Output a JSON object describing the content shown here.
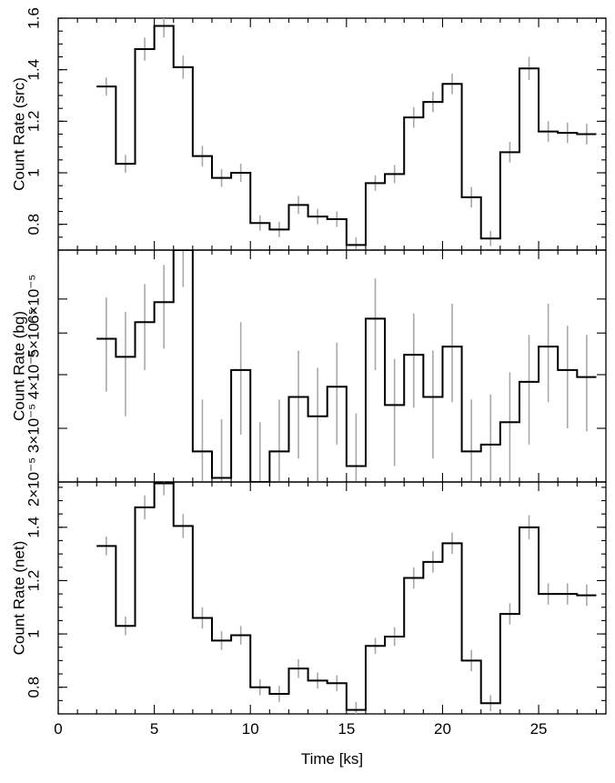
{
  "chart_data": {
    "type": "line",
    "drawstyle": "steps",
    "xlabel": "Time [ks]",
    "xlim": [
      0,
      28.5
    ],
    "xticks": [
      0,
      5,
      10,
      15,
      20,
      25
    ],
    "xticklabels": [
      "0",
      "5",
      "10",
      "15",
      "20",
      "25"
    ],
    "bin_width_ks": 1,
    "x": [
      2.5,
      3.5,
      4.5,
      5.5,
      6.5,
      7.5,
      8.5,
      9.5,
      10.5,
      11.5,
      12.5,
      13.5,
      14.5,
      15.5,
      16.5,
      17.5,
      18.5,
      19.5,
      20.5,
      21.5,
      22.5,
      23.5,
      24.5,
      25.5,
      26.5,
      27.5
    ],
    "panels": [
      {
        "name": "src",
        "ylabel": "Count Rate (src)",
        "ylim": [
          0.7,
          1.6
        ],
        "yticks": [
          0.8,
          1.0,
          1.2,
          1.4,
          1.6
        ],
        "yticklabels": [
          "0.8",
          "1",
          "1.2",
          "1.4",
          "1.6"
        ],
        "values": [
          1.335,
          1.035,
          1.48,
          1.57,
          1.41,
          1.065,
          0.98,
          1.0,
          0.805,
          0.78,
          0.875,
          0.83,
          0.82,
          0.72,
          0.96,
          0.995,
          1.215,
          1.275,
          1.345,
          0.905,
          0.745,
          1.08,
          1.405,
          1.16,
          1.155,
          1.15
        ],
        "errors": [
          0.035,
          0.035,
          0.045,
          0.045,
          0.045,
          0.04,
          0.035,
          0.035,
          0.03,
          0.03,
          0.035,
          0.03,
          0.03,
          0.03,
          0.03,
          0.035,
          0.04,
          0.04,
          0.04,
          0.04,
          0.03,
          0.04,
          0.045,
          0.04,
          0.04,
          0.04
        ]
      },
      {
        "name": "bg",
        "ylabel": "Count Rate (bg)",
        "scale": "log",
        "ylim": [
          2.25e-05,
          7.8e-05
        ],
        "yticks": [
          2e-05,
          3e-05,
          4e-05,
          5e-05,
          6e-05
        ],
        "yticklabels": [
          "2×10⁻⁵",
          "3×10⁻⁵",
          "4×10⁻⁵",
          "5×10⁻⁵",
          "6×10⁻⁵"
        ],
        "values": [
          4.85e-05,
          4.4e-05,
          5.3e-05,
          5.9e-05,
          7.8e-05,
          2.65e-05,
          2.3e-05,
          4.1e-05,
          2.25e-05,
          2.65e-05,
          3.55e-05,
          3.2e-05,
          3.75e-05,
          2.45e-05,
          5.4e-05,
          3.4e-05,
          4.45e-05,
          3.55e-05,
          4.65e-05,
          2.65e-05,
          2.75e-05,
          3.1e-05,
          3.85e-05,
          4.65e-05,
          4.1e-05,
          3.95e-05
        ],
        "errors": [
          1.2e-05,
          1.2e-05,
          1.2e-05,
          1.3e-05,
          1.4e-05,
          8.5e-06,
          8.5e-06,
          1.2e-05,
          8.5e-06,
          8.5e-06,
          1e-05,
          9.5e-06,
          1e-05,
          8e-06,
          1.3e-05,
          9.5e-06,
          1.1e-05,
          1e-05,
          1.2e-05,
          8.5e-06,
          8.5e-06,
          9.5e-06,
          1.1e-05,
          1.2e-05,
          1.1e-05,
          1e-05
        ]
      },
      {
        "name": "net",
        "ylabel": "Count Rate (net)",
        "ylim": [
          0.7,
          1.57
        ],
        "yticks": [
          0.8,
          1.0,
          1.2,
          1.4
        ],
        "yticklabels": [
          "0.8",
          "1",
          "1.2",
          "1.4"
        ],
        "values": [
          1.33,
          1.03,
          1.475,
          1.565,
          1.405,
          1.06,
          0.975,
          0.995,
          0.8,
          0.775,
          0.87,
          0.825,
          0.815,
          0.715,
          0.955,
          0.99,
          1.21,
          1.27,
          1.34,
          0.9,
          0.74,
          1.075,
          1.4,
          1.15,
          1.15,
          1.145
        ],
        "errors": [
          0.035,
          0.035,
          0.045,
          0.045,
          0.045,
          0.04,
          0.035,
          0.035,
          0.03,
          0.03,
          0.035,
          0.03,
          0.03,
          0.03,
          0.03,
          0.035,
          0.04,
          0.04,
          0.04,
          0.04,
          0.03,
          0.04,
          0.045,
          0.04,
          0.04,
          0.04
        ]
      }
    ],
    "colors": {
      "line": "#000000",
      "errorbar": "#a8a8a8",
      "frame": "#000000"
    },
    "grid": false,
    "legend": "none"
  }
}
